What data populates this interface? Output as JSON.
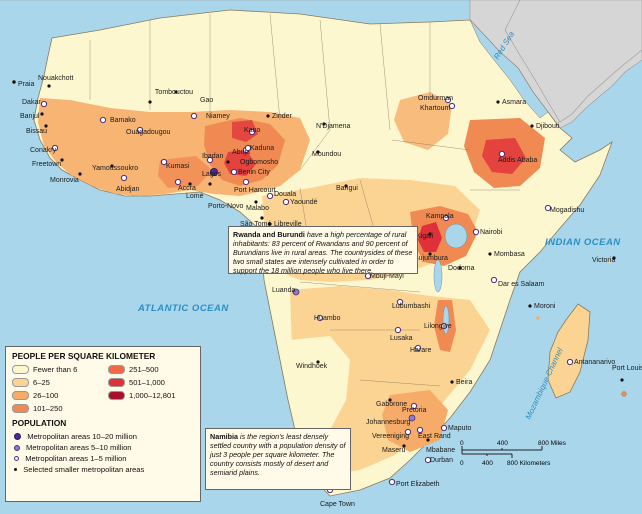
{
  "oceans": {
    "atlantic": "ATLANTIC OCEAN",
    "indian": "INDIAN OCEAN",
    "red_sea": "Red Sea",
    "mozambique": "Mozambique Channel"
  },
  "cities": [
    {
      "name": "Nouakchott",
      "kind": "small"
    },
    {
      "name": "Praia",
      "kind": "small"
    },
    {
      "name": "Dakar",
      "kind": "m1"
    },
    {
      "name": "Banjul",
      "kind": "small"
    },
    {
      "name": "Bissau",
      "kind": "small"
    },
    {
      "name": "Conakry",
      "kind": "m1"
    },
    {
      "name": "Freetown",
      "kind": "small"
    },
    {
      "name": "Monrovia",
      "kind": "small"
    },
    {
      "name": "Bamako",
      "kind": "m1"
    },
    {
      "name": "Tombouctou",
      "kind": "small"
    },
    {
      "name": "Gao",
      "kind": "small"
    },
    {
      "name": "Ouagadougou",
      "kind": "m1"
    },
    {
      "name": "Niamey",
      "kind": "m1"
    },
    {
      "name": "Yamoussoukro",
      "kind": "small"
    },
    {
      "name": "Abidjan",
      "kind": "m1"
    },
    {
      "name": "Kumasi",
      "kind": "m1"
    },
    {
      "name": "Accra",
      "kind": "m1"
    },
    {
      "name": "Lomé",
      "kind": "small"
    },
    {
      "name": "Porto-Novo",
      "kind": "small"
    },
    {
      "name": "Ibadan",
      "kind": "m1"
    },
    {
      "name": "Lagos",
      "kind": "m10"
    },
    {
      "name": "Ogbomosho",
      "kind": "small"
    },
    {
      "name": "Benin City",
      "kind": "m1"
    },
    {
      "name": "Port Harcourt",
      "kind": "m1"
    },
    {
      "name": "Abuja",
      "kind": "m1"
    },
    {
      "name": "Kaduna",
      "kind": "m1"
    },
    {
      "name": "Kano",
      "kind": "m1"
    },
    {
      "name": "Zinder",
      "kind": "small"
    },
    {
      "name": "N'Djamena",
      "kind": "small"
    },
    {
      "name": "Moundou",
      "kind": "small"
    },
    {
      "name": "Douala",
      "kind": "m1"
    },
    {
      "name": "Yaoundé",
      "kind": "m1"
    },
    {
      "name": "Malabo",
      "kind": "small"
    },
    {
      "name": "Bangui",
      "kind": "small"
    },
    {
      "name": "São Tomé",
      "kind": "small"
    },
    {
      "name": "Libreville",
      "kind": "small"
    },
    {
      "name": "Brazzaville",
      "kind": "m1"
    },
    {
      "name": "Kinshasa",
      "kind": "m10"
    },
    {
      "name": "Luanda",
      "kind": "m5"
    },
    {
      "name": "Huambo",
      "kind": "m1"
    },
    {
      "name": "Mbuji-Mayi",
      "kind": "m1"
    },
    {
      "name": "Lubumbashi",
      "kind": "m1"
    },
    {
      "name": "Lusaka",
      "kind": "m1"
    },
    {
      "name": "Lilongwe",
      "kind": "m1"
    },
    {
      "name": "Harare",
      "kind": "m1"
    },
    {
      "name": "Beira",
      "kind": "small"
    },
    {
      "name": "Windhoek",
      "kind": "small"
    },
    {
      "name": "Gaborone",
      "kind": "small"
    },
    {
      "name": "Pretoria",
      "kind": "m1"
    },
    {
      "name": "Johannesburg",
      "kind": "m5"
    },
    {
      "name": "Vereeniging",
      "kind": "m1"
    },
    {
      "name": "Maseru",
      "kind": "small"
    },
    {
      "name": "East Rand",
      "kind": "m1"
    },
    {
      "name": "Mbabane",
      "kind": "small"
    },
    {
      "name": "Maputo",
      "kind": "m1"
    },
    {
      "name": "Durban",
      "kind": "m1"
    },
    {
      "name": "Port Elizabeth",
      "kind": "m1"
    },
    {
      "name": "Cape Town",
      "kind": "m1"
    },
    {
      "name": "Omdurman",
      "kind": "m1"
    },
    {
      "name": "Khartoum",
      "kind": "m1"
    },
    {
      "name": "Asmara",
      "kind": "small"
    },
    {
      "name": "Djibouti",
      "kind": "small"
    },
    {
      "name": "Addis Ababa",
      "kind": "m1"
    },
    {
      "name": "Mogadishu",
      "kind": "m1"
    },
    {
      "name": "Kampala",
      "kind": "m1"
    },
    {
      "name": "Nairobi",
      "kind": "m1"
    },
    {
      "name": "Kigali",
      "kind": "small"
    },
    {
      "name": "Bujumbura",
      "kind": "small"
    },
    {
      "name": "Mombasa",
      "kind": "small"
    },
    {
      "name": "Dodoma",
      "kind": "small"
    },
    {
      "name": "Dar es Salaam",
      "kind": "m1"
    },
    {
      "name": "Moroni",
      "kind": "small"
    },
    {
      "name": "Victoria",
      "kind": "small"
    },
    {
      "name": "Antananarivo",
      "kind": "m1"
    },
    {
      "name": "Port Louis",
      "kind": "small"
    }
  ],
  "notes": {
    "rwanda_title": "Rwanda and Burundi",
    "rwanda_text": " have a high percentage of rural inhabitants: 83 percent of Rwandans and 90 percent of Burundians live in rural areas. The countrysides of these two small states are intensely cultivated in order to support the 18 million people who live there.",
    "namibia_title": "Namibia",
    "namibia_text": " is the region's least densely settled country with a population density of just 3 people per square kilometer. The country consists mostly of desert and semiarid plains."
  },
  "legend": {
    "density_title": "PEOPLE PER SQUARE KILOMETER",
    "density": [
      {
        "label": "Fewer than 6",
        "color": "#fdf7d0"
      },
      {
        "label": "251–500",
        "color": "#f06a4a"
      },
      {
        "label": "6–25",
        "color": "#fbd493"
      },
      {
        "label": "501–1,000",
        "color": "#e0303a"
      },
      {
        "label": "26–100",
        "color": "#f6ac68"
      },
      {
        "label": "1,000–12,801",
        "color": "#a80f2c"
      },
      {
        "label": "101–250",
        "color": "#f08a52"
      }
    ],
    "population_title": "POPULATION",
    "population": [
      {
        "label": "Metropolitan areas 10–20 million",
        "kind": "m10"
      },
      {
        "label": "Metropolitan areas 5–10 million",
        "kind": "m5"
      },
      {
        "label": "Metropolitan areas 1–5 million",
        "kind": "m1"
      },
      {
        "label": "Selected smaller metropolitan areas",
        "kind": "small"
      }
    ]
  },
  "scale": {
    "miles_ticks": [
      "0",
      "400",
      "800 Miles"
    ],
    "km_ticks": [
      "0",
      "400",
      "800 Kilometers"
    ]
  },
  "colors": {
    "ocean": "#a9d6ea",
    "land_outside": "#d6d6d6",
    "sparse": "#fdf7d0",
    "low": "#fbd493",
    "mid": "#f6ac68",
    "high": "#f08a52",
    "very_high": "#e0303a",
    "extreme": "#a80f2c",
    "metro_10_20": "#4a2b9e",
    "metro_5_10": "#8e7ac6"
  }
}
